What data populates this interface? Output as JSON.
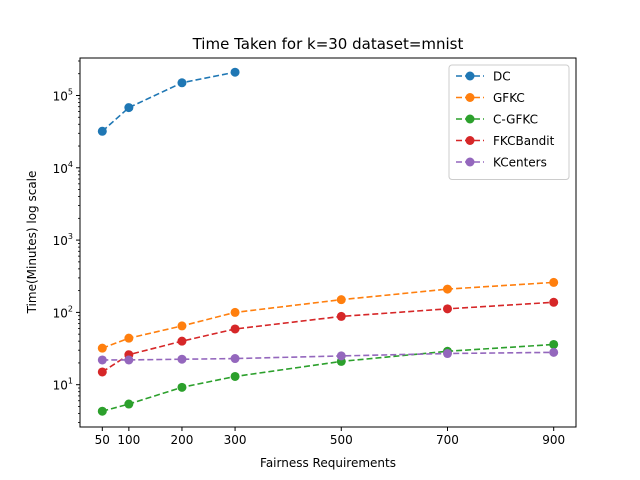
{
  "chart_data": {
    "type": "line",
    "title": "Time Taken for k=30 dataset=mnist",
    "xlabel": "Fairness Requirements",
    "ylabel": "Time(Minutes) log scale",
    "yscale": "log",
    "xlim": [
      8,
      942
    ],
    "ylim": [
      2.6,
      330000
    ],
    "x_ticks": [
      50,
      100,
      200,
      300,
      500,
      700,
      900
    ],
    "y_ticks": [
      {
        "base": "10",
        "exp": "1",
        "value": 10
      },
      {
        "base": "10",
        "exp": "2",
        "value": 100
      },
      {
        "base": "10",
        "exp": "3",
        "value": 1000
      },
      {
        "base": "10",
        "exp": "4",
        "value": 10000
      },
      {
        "base": "10",
        "exp": "5",
        "value": 100000
      }
    ],
    "grid": false,
    "legend_position": "upper right",
    "line_style": "dashed",
    "marker": "circle",
    "series": [
      {
        "name": "DC",
        "color": "#1f77b4",
        "x": [
          50,
          100,
          200,
          300
        ],
        "y": [
          32000,
          68000,
          150000,
          210000
        ]
      },
      {
        "name": "GFKC",
        "color": "#ff7f0e",
        "x": [
          50,
          100,
          200,
          300,
          500,
          700,
          900
        ],
        "y": [
          32,
          44,
          65,
          100,
          150,
          210,
          260
        ]
      },
      {
        "name": "C-GFKC",
        "color": "#2ca02c",
        "x": [
          50,
          100,
          200,
          300,
          500,
          700,
          900
        ],
        "y": [
          4.3,
          5.4,
          9.2,
          13,
          21,
          29,
          36
        ]
      },
      {
        "name": "FKCBandit",
        "color": "#d62728",
        "x": [
          50,
          100,
          200,
          300,
          500,
          700,
          900
        ],
        "y": [
          15,
          26,
          40,
          59,
          88,
          112,
          138
        ]
      },
      {
        "name": "KCenters",
        "color": "#9467bd",
        "x": [
          50,
          100,
          200,
          300,
          500,
          700,
          900
        ],
        "y": [
          22,
          22,
          22.5,
          23,
          25,
          27,
          28
        ]
      }
    ]
  }
}
